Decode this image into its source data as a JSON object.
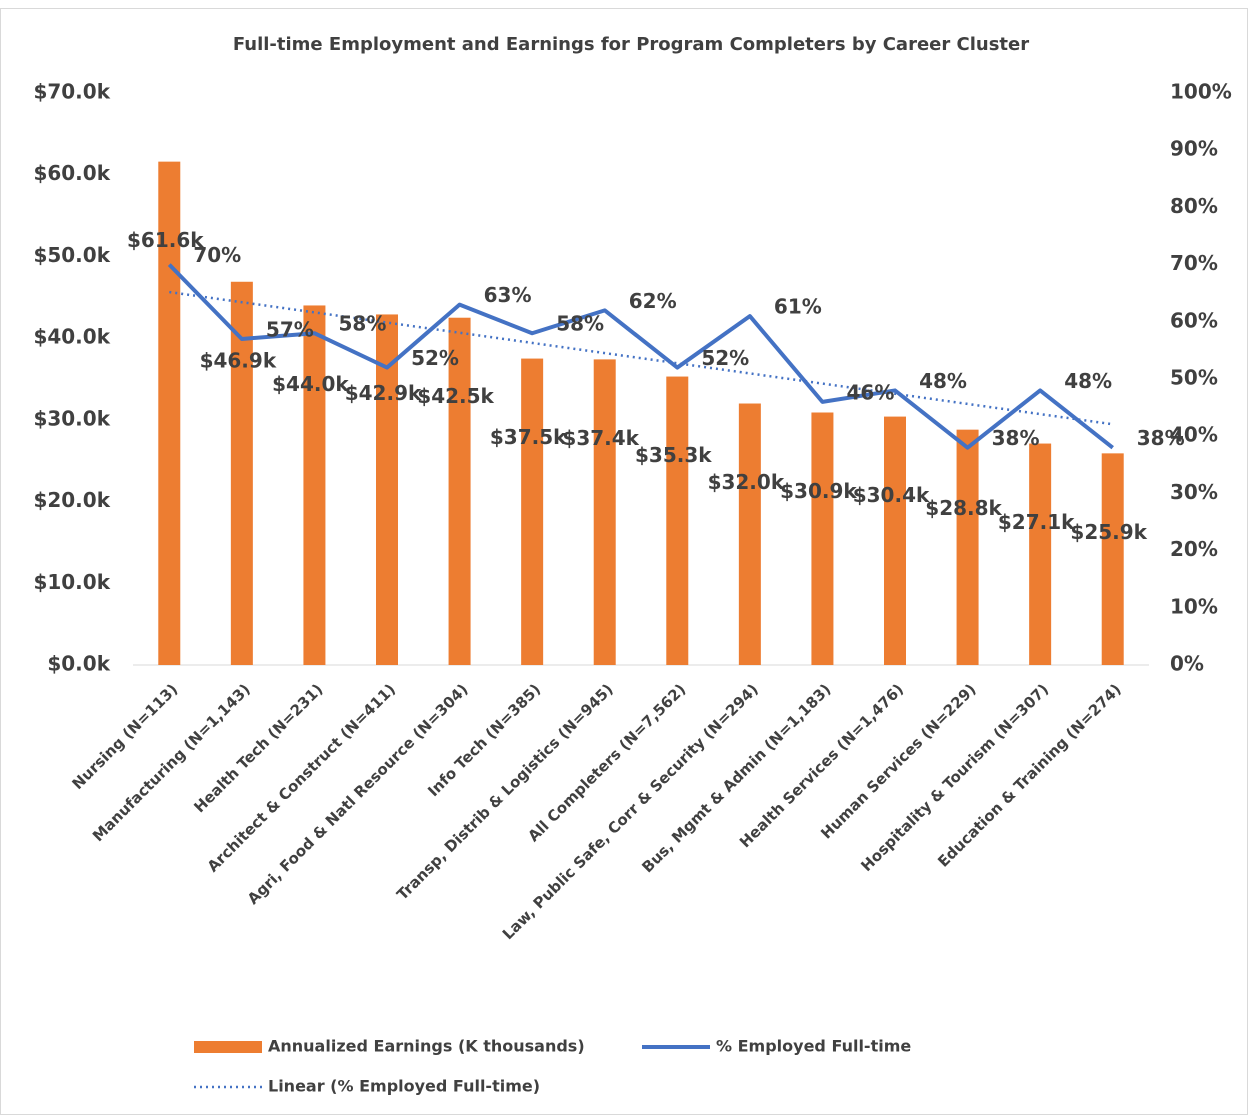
{
  "chart_data": {
    "type": "bar_line",
    "title": "Full-time Employment and Earnings for Program Completers by Career Cluster",
    "categories": [
      "Nursing (N=113)",
      "Manufacturing (N=1,143)",
      "Health Tech (N=231)",
      "Architect & Construct (N=411)",
      "Agri, Food & Natl Resource (N=304)",
      "Info Tech (N=385)",
      "Transp, Distrib & Logistics (N=945)",
      "All Completers (N=7,562)",
      "Law, Public Safe, Corr & Security (N=294)",
      "Bus, Mgmt & Admin (N=1,183)",
      "Health Services (N=1,476)",
      "Human Services (N=229)",
      "Hospitality & Tourism (N=307)",
      "Education & Training (N=274)"
    ],
    "series": [
      {
        "name": "Annualized Earnings (K thousands)",
        "color": "#ed7d31",
        "kind": "bar",
        "values": [
          61.6,
          46.9,
          44.0,
          42.9,
          42.5,
          37.5,
          37.4,
          35.3,
          32.0,
          30.9,
          30.4,
          28.8,
          27.1,
          25.9
        ],
        "value_labels": [
          "$61.6k",
          "$46.9k",
          "$44.0k",
          "$42.9k",
          "$42.5k",
          "$37.5k",
          "$37.4k",
          "$35.3k",
          "$32.0k",
          "$30.9k",
          "$30.4k",
          "$28.8k",
          "$27.1k",
          "$25.9k"
        ]
      },
      {
        "name": "% Employed Full-time",
        "color": "#4472c4",
        "kind": "line",
        "axis": "y2",
        "values": [
          70,
          57,
          58,
          52,
          63,
          58,
          62,
          52,
          61,
          46,
          48,
          38,
          48,
          38
        ],
        "value_labels": [
          "70%",
          "57%",
          "58%",
          "52%",
          "63%",
          "58%",
          "62%",
          "52%",
          "61%",
          "46%",
          "48%",
          "38%",
          "48%",
          "38%"
        ]
      }
    ],
    "trendline": {
      "name": "Linear (% Employed Full-time)",
      "color": "#4472c4",
      "of_series": 1
    },
    "ylim": [
      0,
      70
    ],
    "yticks": [
      {
        "value": 0,
        "label": "$0.0k"
      },
      {
        "value": 10,
        "label": "$10.0k"
      },
      {
        "value": 20,
        "label": "$20.0k"
      },
      {
        "value": 30,
        "label": "$30.0k"
      },
      {
        "value": 40,
        "label": "$40.0k"
      },
      {
        "value": 50,
        "label": "$50.0k"
      },
      {
        "value": 60,
        "label": "$60.0k"
      },
      {
        "value": 70,
        "label": "$70.0k"
      }
    ],
    "y2lim": [
      0,
      100
    ],
    "y2ticks": [
      {
        "value": 0,
        "label": "0%"
      },
      {
        "value": 10,
        "label": "10%"
      },
      {
        "value": 20,
        "label": "20%"
      },
      {
        "value": 30,
        "label": "30%"
      },
      {
        "value": 40,
        "label": "40%"
      },
      {
        "value": 50,
        "label": "50%"
      },
      {
        "value": 60,
        "label": "60%"
      },
      {
        "value": 70,
        "label": "70%"
      },
      {
        "value": 80,
        "label": "80%"
      },
      {
        "value": 90,
        "label": "90%"
      },
      {
        "value": 100,
        "label": "100%"
      }
    ],
    "grid": false,
    "legend": "bottom"
  }
}
